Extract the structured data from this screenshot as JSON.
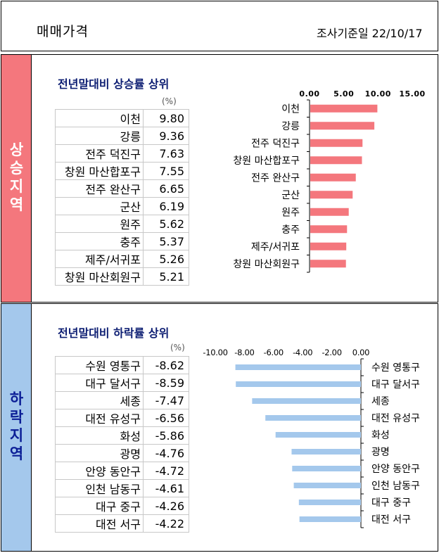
{
  "header": {
    "title": "매매가격",
    "survey_date": "조사기준일 22/10/17"
  },
  "rise": {
    "side_label": [
      "상",
      "승",
      "지",
      "역"
    ],
    "subtitle": "전년말대비 상승률 상위",
    "unit": "(%)",
    "bar_color": "#f4777d"
  },
  "fall": {
    "side_label": [
      "하",
      "락",
      "지",
      "역"
    ],
    "subtitle": "전년말대비 하락률 상위",
    "unit": "(%)",
    "bar_color": "#a4c8ec"
  },
  "chart_data": [
    {
      "type": "bar",
      "orientation": "horizontal",
      "title": "전년말대비 상승률 상위",
      "categories": [
        "이천",
        "강릉",
        "전주 덕진구",
        "창원 마산합포구",
        "전주 완산구",
        "군산",
        "원주",
        "충주",
        "제주/서귀포",
        "창원 마산회원구"
      ],
      "values": [
        9.8,
        9.36,
        7.63,
        7.55,
        6.65,
        6.19,
        5.62,
        5.37,
        5.26,
        5.21
      ],
      "value_labels": [
        "9.80",
        "9.36",
        "7.63",
        "7.55",
        "6.65",
        "6.19",
        "5.62",
        "5.37",
        "5.26",
        "5.21"
      ],
      "xlim": [
        0,
        15
      ],
      "ticks": [
        0,
        5,
        10,
        15
      ],
      "tick_labels": [
        "0.00",
        "5.00",
        "10.00",
        "15.00"
      ],
      "unit": "%"
    },
    {
      "type": "bar",
      "orientation": "horizontal",
      "title": "전년말대비 하락률 상위",
      "categories": [
        "수원 영통구",
        "대구 달서구",
        "세종",
        "대전 유성구",
        "화성",
        "광명",
        "안양 동안구",
        "인천 남동구",
        "대구 중구",
        "대전 서구"
      ],
      "values": [
        -8.62,
        -8.59,
        -7.47,
        -6.56,
        -5.86,
        -4.76,
        -4.72,
        -4.61,
        -4.26,
        -4.22
      ],
      "value_labels": [
        "-8.62",
        "-8.59",
        "-7.47",
        "-6.56",
        "-5.86",
        "-4.76",
        "-4.72",
        "-4.61",
        "-4.26",
        "-4.22"
      ],
      "xlim": [
        -10,
        0
      ],
      "ticks": [
        -10,
        -8,
        -6,
        -4,
        -2,
        0
      ],
      "tick_labels": [
        "-10.00",
        "-8.00",
        "-6.00",
        "-4.00",
        "-2.00",
        "0.00"
      ],
      "unit": "%"
    }
  ]
}
